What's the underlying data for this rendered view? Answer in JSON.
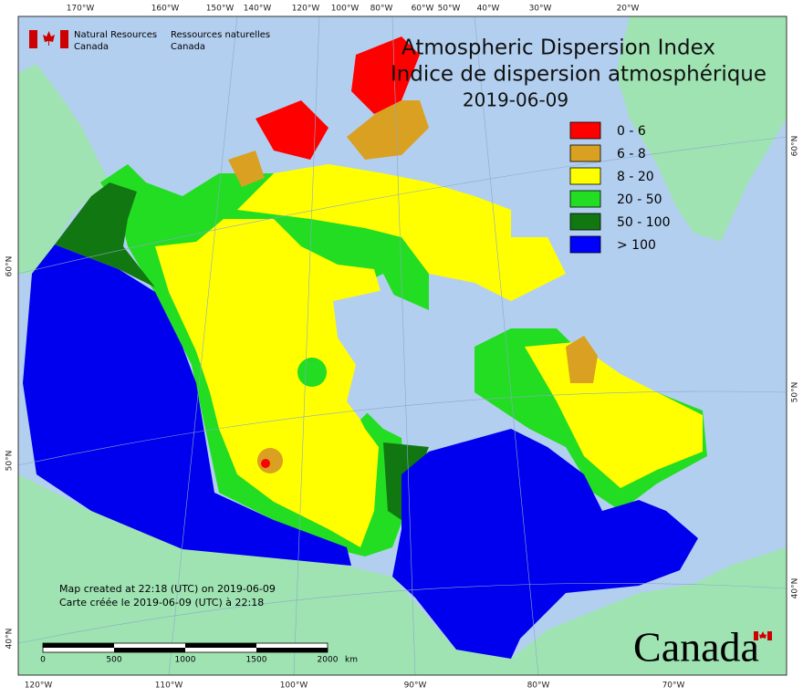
{
  "agency": {
    "en1": "Natural Resources",
    "en2": "Canada",
    "fr1": "Ressources naturelles",
    "fr2": "Canada"
  },
  "title": {
    "line1": "Atmospheric Dispersion Index",
    "line2": "Indice de dispersion atmosphérique",
    "date": "2019-06-09"
  },
  "legend": [
    {
      "label": "0 - 6",
      "color": "#ff0000"
    },
    {
      "label": "6 - 8",
      "color": "#d9a021"
    },
    {
      "label": "8 - 20",
      "color": "#ffff00"
    },
    {
      "label": "20 - 50",
      "color": "#22dd22"
    },
    {
      "label": "50 - 100",
      "color": "#117711"
    },
    {
      "label": "> 100",
      "color": "#0000ff"
    }
  ],
  "graticule": {
    "top": [
      "170°W",
      "160°W",
      "150°W",
      "140°W",
      "120°W",
      "100°W",
      "80°W",
      "60°W",
      "50°W",
      "40°W",
      "30°W",
      "20°W"
    ],
    "bottom": [
      "120°W",
      "110°W",
      "100°W",
      "90°W",
      "80°W",
      "70°W"
    ],
    "left": [
      "60°N",
      "50°N",
      "40°N"
    ],
    "right": [
      "60°N",
      "50°N",
      "40°N"
    ]
  },
  "footer": {
    "created_en": "Map created at 22:18 (UTC) on 2019-06-09",
    "created_fr": "Carte créée le 2019-06-09 (UTC) à 22:18"
  },
  "scale": {
    "labels": [
      "0",
      "500",
      "1000",
      "1500",
      "2000"
    ],
    "unit": "km"
  },
  "wordmark": "Canada"
}
